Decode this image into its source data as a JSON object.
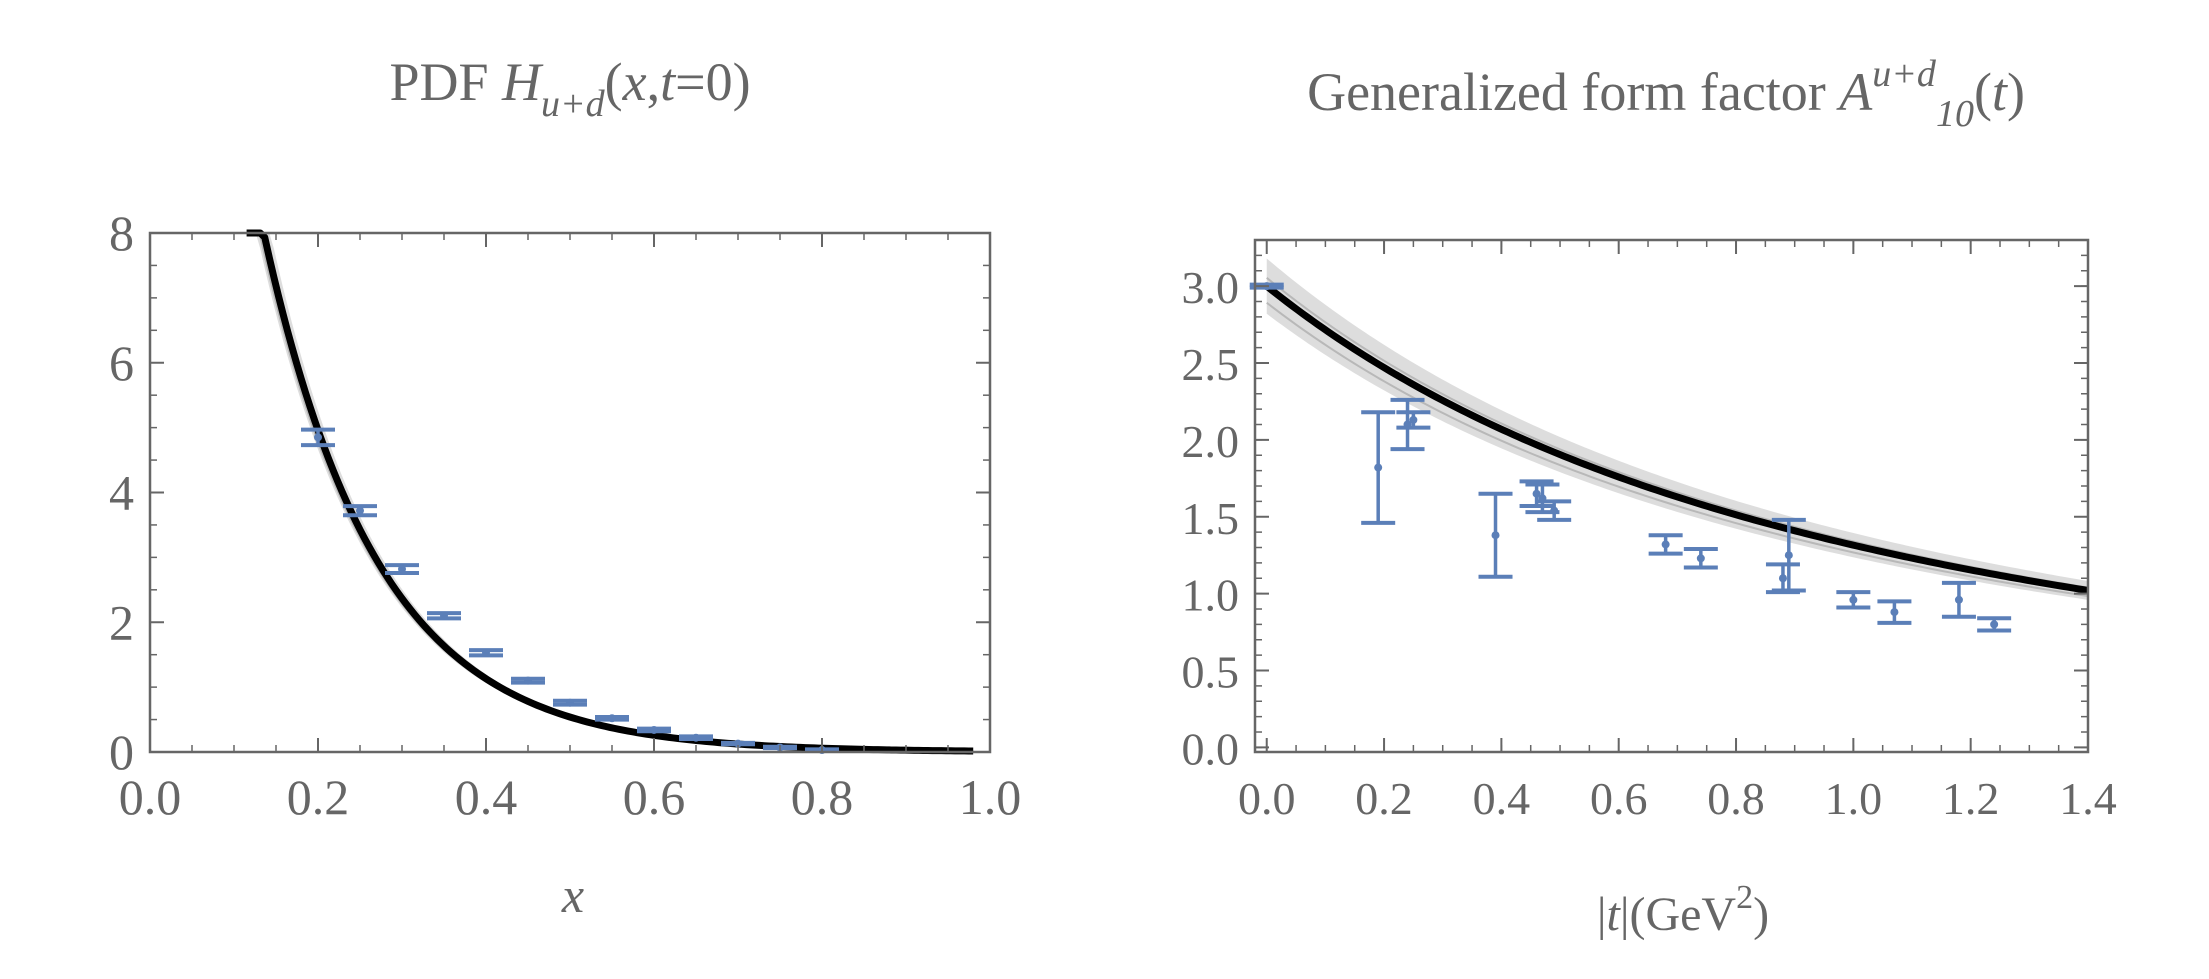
{
  "colors": {
    "curve": "#000000",
    "band": "#cfcfcf",
    "points": "#5b7fb8",
    "frame": "#666666",
    "text": "#666666"
  },
  "chart_data": [
    {
      "type": "scatter",
      "title": {
        "prefix": "PDF ",
        "func": "H",
        "sub": "u+d",
        "args_open": "(",
        "var1": "x",
        "comma": ",",
        "var2": "t",
        "args_close": "=0)"
      },
      "xlabel": "x",
      "ylabel": "",
      "xlim": [
        0.0,
        1.0
      ],
      "ylim": [
        0,
        8
      ],
      "xticks": [
        "0.0",
        "0.2",
        "0.4",
        "0.6",
        "0.8",
        "1.0"
      ],
      "xtick_values": [
        0.0,
        0.2,
        0.4,
        0.6,
        0.8,
        1.0
      ],
      "yticks": [
        "0",
        "2",
        "4",
        "6",
        "8"
      ],
      "ytick_values": [
        0,
        2,
        4,
        6,
        8
      ],
      "grid": false,
      "fit_curve": {
        "form": "exponential",
        "A": 21.8,
        "k": 7.4,
        "x_start": 0.115,
        "x_end": 0.98,
        "band_halfwidth_rel": 0.06
      },
      "points": [
        {
          "x": 0.2,
          "y": 4.85,
          "err": 0.12
        },
        {
          "x": 0.25,
          "y": 3.72,
          "err": 0.07
        },
        {
          "x": 0.3,
          "y": 2.82,
          "err": 0.06
        },
        {
          "x": 0.35,
          "y": 2.1,
          "err": 0.04
        },
        {
          "x": 0.4,
          "y": 1.53,
          "err": 0.04
        },
        {
          "x": 0.45,
          "y": 1.1,
          "err": 0.03
        },
        {
          "x": 0.5,
          "y": 0.76,
          "err": 0.03
        },
        {
          "x": 0.55,
          "y": 0.52,
          "err": 0.02
        },
        {
          "x": 0.6,
          "y": 0.34,
          "err": 0.02
        },
        {
          "x": 0.65,
          "y": 0.22,
          "err": 0.02
        },
        {
          "x": 0.7,
          "y": 0.13,
          "err": 0.01
        },
        {
          "x": 0.75,
          "y": 0.07,
          "err": 0.01
        },
        {
          "x": 0.8,
          "y": 0.03,
          "err": 0.01
        }
      ]
    },
    {
      "type": "scatter",
      "title": {
        "prefix": "Generalized form factor ",
        "func": "A",
        "sup": "u+d",
        "sub": "10",
        "args": "(",
        "var": "t",
        "close": ")"
      },
      "xlabel": {
        "bar_open": "|",
        "var": "t",
        "bar_close": "|(GeV",
        "exp": "2",
        "close": ")"
      },
      "ylabel": "",
      "xlim": [
        -0.02,
        1.4
      ],
      "ylim": [
        -0.03,
        3.3
      ],
      "xticks": [
        "0.0",
        "0.2",
        "0.4",
        "0.6",
        "0.8",
        "1.0",
        "1.2",
        "1.4"
      ],
      "xtick_values": [
        0.0,
        0.2,
        0.4,
        0.6,
        0.8,
        1.0,
        1.2,
        1.4
      ],
      "yticks": [
        "0.0",
        "0.5",
        "1.0",
        "1.5",
        "2.0",
        "2.5",
        "3.0"
      ],
      "ytick_values": [
        0.0,
        0.5,
        1.0,
        1.5,
        2.0,
        2.5,
        3.0
      ],
      "grid": false,
      "fit_curve": {
        "form": "dipole",
        "A0": 3.0,
        "M2": 1.96,
        "x_start": 0.0,
        "x_end": 1.4,
        "band_halfwidth_rel": 0.06
      },
      "points": [
        {
          "x": 0.0,
          "y": 3.0,
          "err": 0.01
        },
        {
          "x": 0.19,
          "y": 1.82,
          "err": 0.36
        },
        {
          "x": 0.24,
          "y": 2.1,
          "err": 0.16
        },
        {
          "x": 0.25,
          "y": 2.13,
          "err": 0.05
        },
        {
          "x": 0.39,
          "y": 1.38,
          "err": 0.27
        },
        {
          "x": 0.46,
          "y": 1.65,
          "err": 0.08
        },
        {
          "x": 0.47,
          "y": 1.62,
          "err": 0.09
        },
        {
          "x": 0.49,
          "y": 1.54,
          "err": 0.06
        },
        {
          "x": 0.68,
          "y": 1.32,
          "err": 0.06
        },
        {
          "x": 0.74,
          "y": 1.23,
          "err": 0.06
        },
        {
          "x": 0.88,
          "y": 1.1,
          "err": 0.09
        },
        {
          "x": 0.89,
          "y": 1.25,
          "err": 0.23
        },
        {
          "x": 1.0,
          "y": 0.96,
          "err": 0.05
        },
        {
          "x": 1.07,
          "y": 0.88,
          "err": 0.07
        },
        {
          "x": 1.18,
          "y": 0.96,
          "err": 0.11
        },
        {
          "x": 1.24,
          "y": 0.8,
          "err": 0.04
        }
      ]
    }
  ]
}
